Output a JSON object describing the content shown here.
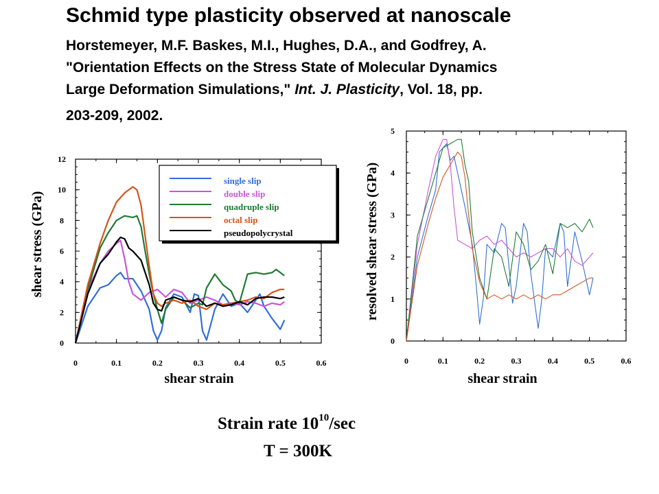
{
  "header": {
    "title": "Schmid type plasticity observed at nanoscale",
    "authors": "Horstemeyer, M.F. Baskes, M.I., Hughes, D.A., and Godfrey, A.",
    "paper_title_line1": "\"Orientation Effects on the Stress State of Molecular Dynamics",
    "paper_title_line2": "Large Deformation Simulations,\"",
    "journal": "Int. J. Plasticity",
    "volume": ", Vol. 18, pp.",
    "pages_year": "203-209, 2002."
  },
  "conditions": {
    "rate_prefix": "Strain rate 10",
    "rate_exponent": "10",
    "rate_suffix": "/sec",
    "temperature": "T = 300K"
  },
  "chart_data": [
    {
      "type": "line",
      "xlabel": "shear strain",
      "ylabel": "shear stress (GPa)",
      "xlim": [
        0,
        0.6
      ],
      "ylim": [
        0,
        12
      ],
      "xticks": [
        "0",
        "0.1",
        "0.2",
        "0.3",
        "0.4",
        "0.5",
        "0.6"
      ],
      "yticks": [
        "0",
        "2",
        "4",
        "6",
        "8",
        "10",
        "12"
      ],
      "legend_placement": "top-right",
      "series": [
        {
          "name": "single slip",
          "color": "#2f6fd6",
          "x": [
            0,
            0.03,
            0.06,
            0.08,
            0.1,
            0.11,
            0.12,
            0.14,
            0.16,
            0.18,
            0.19,
            0.2,
            0.21,
            0.22,
            0.24,
            0.26,
            0.28,
            0.29,
            0.3,
            0.31,
            0.32,
            0.34,
            0.36,
            0.38,
            0.4,
            0.42,
            0.44,
            0.45,
            0.46,
            0.48,
            0.5,
            0.51
          ],
          "y": [
            0,
            2.4,
            3.6,
            3.8,
            4.4,
            4.6,
            4.2,
            4.2,
            3.4,
            2.2,
            0.8,
            0.2,
            0.8,
            2.3,
            3.2,
            3.0,
            2.0,
            3.2,
            3.1,
            0.8,
            0.2,
            2.2,
            3.2,
            2.4,
            2.6,
            2.0,
            2.8,
            3.2,
            2.4,
            1.6,
            0.9,
            1.5
          ]
        },
        {
          "name": "double slip",
          "color": "#c855d6",
          "x": [
            0,
            0.03,
            0.06,
            0.08,
            0.1,
            0.11,
            0.12,
            0.13,
            0.14,
            0.16,
            0.18,
            0.2,
            0.22,
            0.24,
            0.26,
            0.28,
            0.3,
            0.32,
            0.34,
            0.36,
            0.38,
            0.4,
            0.42,
            0.44,
            0.46,
            0.48,
            0.5,
            0.51
          ],
          "y": [
            0,
            3.5,
            5.2,
            6.0,
            6.5,
            6.7,
            5.5,
            4.0,
            3.2,
            2.8,
            3.3,
            3.5,
            3.0,
            3.5,
            3.3,
            2.6,
            2.8,
            3.0,
            2.8,
            2.5,
            2.6,
            2.5,
            2.7,
            2.6,
            2.4,
            2.6,
            2.5,
            2.7
          ]
        },
        {
          "name": "quadruple slip",
          "color": "#1e7a32",
          "x": [
            0,
            0.03,
            0.06,
            0.08,
            0.1,
            0.12,
            0.14,
            0.15,
            0.16,
            0.17,
            0.18,
            0.19,
            0.2,
            0.21,
            0.22,
            0.24,
            0.26,
            0.28,
            0.3,
            0.31,
            0.32,
            0.34,
            0.36,
            0.38,
            0.39,
            0.4,
            0.42,
            0.44,
            0.46,
            0.48,
            0.49,
            0.5,
            0.51
          ],
          "y": [
            0,
            3.5,
            6.2,
            7.2,
            8.0,
            8.3,
            8.2,
            8.3,
            7.6,
            6.0,
            4.5,
            3.2,
            2.2,
            1.3,
            2.2,
            3.0,
            2.8,
            2.3,
            2.6,
            2.5,
            3.6,
            4.5,
            3.8,
            3.4,
            2.8,
            2.6,
            4.5,
            4.6,
            4.5,
            4.6,
            4.8,
            4.6,
            4.4
          ]
        },
        {
          "name": "octal slip",
          "color": "#d4541a",
          "x": [
            0,
            0.03,
            0.06,
            0.08,
            0.1,
            0.12,
            0.14,
            0.15,
            0.16,
            0.17,
            0.18,
            0.19,
            0.2,
            0.21,
            0.22,
            0.24,
            0.26,
            0.28,
            0.3,
            0.32,
            0.34,
            0.36,
            0.38,
            0.4,
            0.42,
            0.44,
            0.46,
            0.48,
            0.5,
            0.51
          ],
          "y": [
            0,
            3.8,
            6.5,
            8.0,
            9.2,
            9.8,
            10.2,
            10.0,
            9.0,
            7.0,
            5.0,
            3.2,
            2.6,
            2.4,
            2.6,
            2.8,
            2.6,
            2.8,
            2.4,
            2.2,
            2.6,
            2.5,
            2.6,
            2.7,
            2.8,
            3.0,
            2.9,
            3.3,
            3.5,
            3.5
          ]
        },
        {
          "name": "pseudopolycrystal",
          "color": "#000000",
          "x": [
            0,
            0.03,
            0.06,
            0.08,
            0.1,
            0.11,
            0.12,
            0.13,
            0.14,
            0.16,
            0.18,
            0.19,
            0.2,
            0.21,
            0.22,
            0.24,
            0.26,
            0.28,
            0.3,
            0.32,
            0.34,
            0.36,
            0.38,
            0.4,
            0.42,
            0.44,
            0.46,
            0.48,
            0.5,
            0.51
          ],
          "y": [
            0,
            3.2,
            5.2,
            5.8,
            6.6,
            6.9,
            6.8,
            6.2,
            6.0,
            5.4,
            3.8,
            2.6,
            2.2,
            2.1,
            2.8,
            3.0,
            2.8,
            2.7,
            2.9,
            2.4,
            2.6,
            2.4,
            2.5,
            2.7,
            2.5,
            2.9,
            3.0,
            3.0,
            2.9,
            3.0
          ]
        }
      ]
    },
    {
      "type": "line",
      "xlabel": "shear strain",
      "ylabel": "resolved shear stress (GPa)",
      "xlim": [
        0,
        0.6
      ],
      "ylim": [
        0,
        5
      ],
      "xticks": [
        "0",
        "0.1",
        "0.2",
        "0.3",
        "0.4",
        "0.5",
        "0.6"
      ],
      "yticks": [
        "0",
        "1",
        "2",
        "3",
        "4",
        "5"
      ],
      "series": [
        {
          "color": "#2f6fd6",
          "x": [
            0,
            0.03,
            0.06,
            0.08,
            0.09,
            0.1,
            0.11,
            0.12,
            0.13,
            0.14,
            0.16,
            0.18,
            0.19,
            0.2,
            0.21,
            0.22,
            0.24,
            0.26,
            0.27,
            0.28,
            0.29,
            0.3,
            0.32,
            0.33,
            0.34,
            0.36,
            0.37,
            0.38,
            0.4,
            0.42,
            0.43,
            0.44,
            0.46,
            0.48,
            0.49,
            0.5,
            0.51
          ],
          "y": [
            0,
            2.0,
            3.0,
            3.6,
            4.5,
            4.6,
            4.7,
            4.3,
            4.4,
            4.0,
            3.2,
            2.3,
            1.4,
            0.4,
            1.0,
            2.3,
            2.1,
            2.8,
            2.7,
            1.8,
            0.9,
            1.3,
            2.8,
            2.6,
            1.6,
            0.3,
            1.0,
            2.2,
            2.0,
            2.8,
            2.6,
            1.3,
            2.6,
            1.9,
            1.5,
            1.1,
            1.5
          ]
        },
        {
          "color": "#c855d6",
          "x": [
            0,
            0.03,
            0.06,
            0.08,
            0.1,
            0.11,
            0.12,
            0.13,
            0.14,
            0.16,
            0.18,
            0.2,
            0.22,
            0.24,
            0.26,
            0.28,
            0.3,
            0.32,
            0.34,
            0.36,
            0.38,
            0.4,
            0.42,
            0.44,
            0.46,
            0.48,
            0.5,
            0.51
          ],
          "y": [
            0,
            2.3,
            3.6,
            4.4,
            4.8,
            4.8,
            4.2,
            3.2,
            2.4,
            2.3,
            2.2,
            2.4,
            2.5,
            2.3,
            2.4,
            2.2,
            2.0,
            2.1,
            2.0,
            2.1,
            2.2,
            2.2,
            2.0,
            2.2,
            1.9,
            1.8,
            2.0,
            2.1
          ]
        },
        {
          "color": "#1e7a32",
          "x": [
            0,
            0.03,
            0.06,
            0.08,
            0.1,
            0.12,
            0.14,
            0.15,
            0.16,
            0.17,
            0.18,
            0.2,
            0.22,
            0.24,
            0.26,
            0.28,
            0.3,
            0.32,
            0.34,
            0.36,
            0.38,
            0.4,
            0.42,
            0.44,
            0.46,
            0.48,
            0.5,
            0.51
          ],
          "y": [
            0,
            2.5,
            3.4,
            4.0,
            4.6,
            4.7,
            4.8,
            4.8,
            4.2,
            3.8,
            2.6,
            1.5,
            1.0,
            2.2,
            2.0,
            1.3,
            2.6,
            2.3,
            1.7,
            1.9,
            2.3,
            1.6,
            2.8,
            2.7,
            2.8,
            2.6,
            2.9,
            2.7
          ]
        },
        {
          "color": "#d4541a",
          "x": [
            0,
            0.03,
            0.06,
            0.08,
            0.1,
            0.12,
            0.14,
            0.15,
            0.16,
            0.17,
            0.18,
            0.2,
            0.22,
            0.24,
            0.26,
            0.28,
            0.3,
            0.32,
            0.34,
            0.36,
            0.38,
            0.4,
            0.42,
            0.44,
            0.46,
            0.48,
            0.5,
            0.51
          ],
          "y": [
            0,
            1.8,
            2.8,
            3.4,
            3.9,
            4.2,
            4.5,
            4.4,
            3.9,
            3.0,
            2.2,
            1.4,
            1.0,
            1.1,
            1.0,
            1.1,
            1.0,
            1.1,
            1.0,
            1.1,
            1.0,
            1.1,
            1.1,
            1.2,
            1.3,
            1.4,
            1.5,
            1.5
          ]
        }
      ]
    }
  ]
}
